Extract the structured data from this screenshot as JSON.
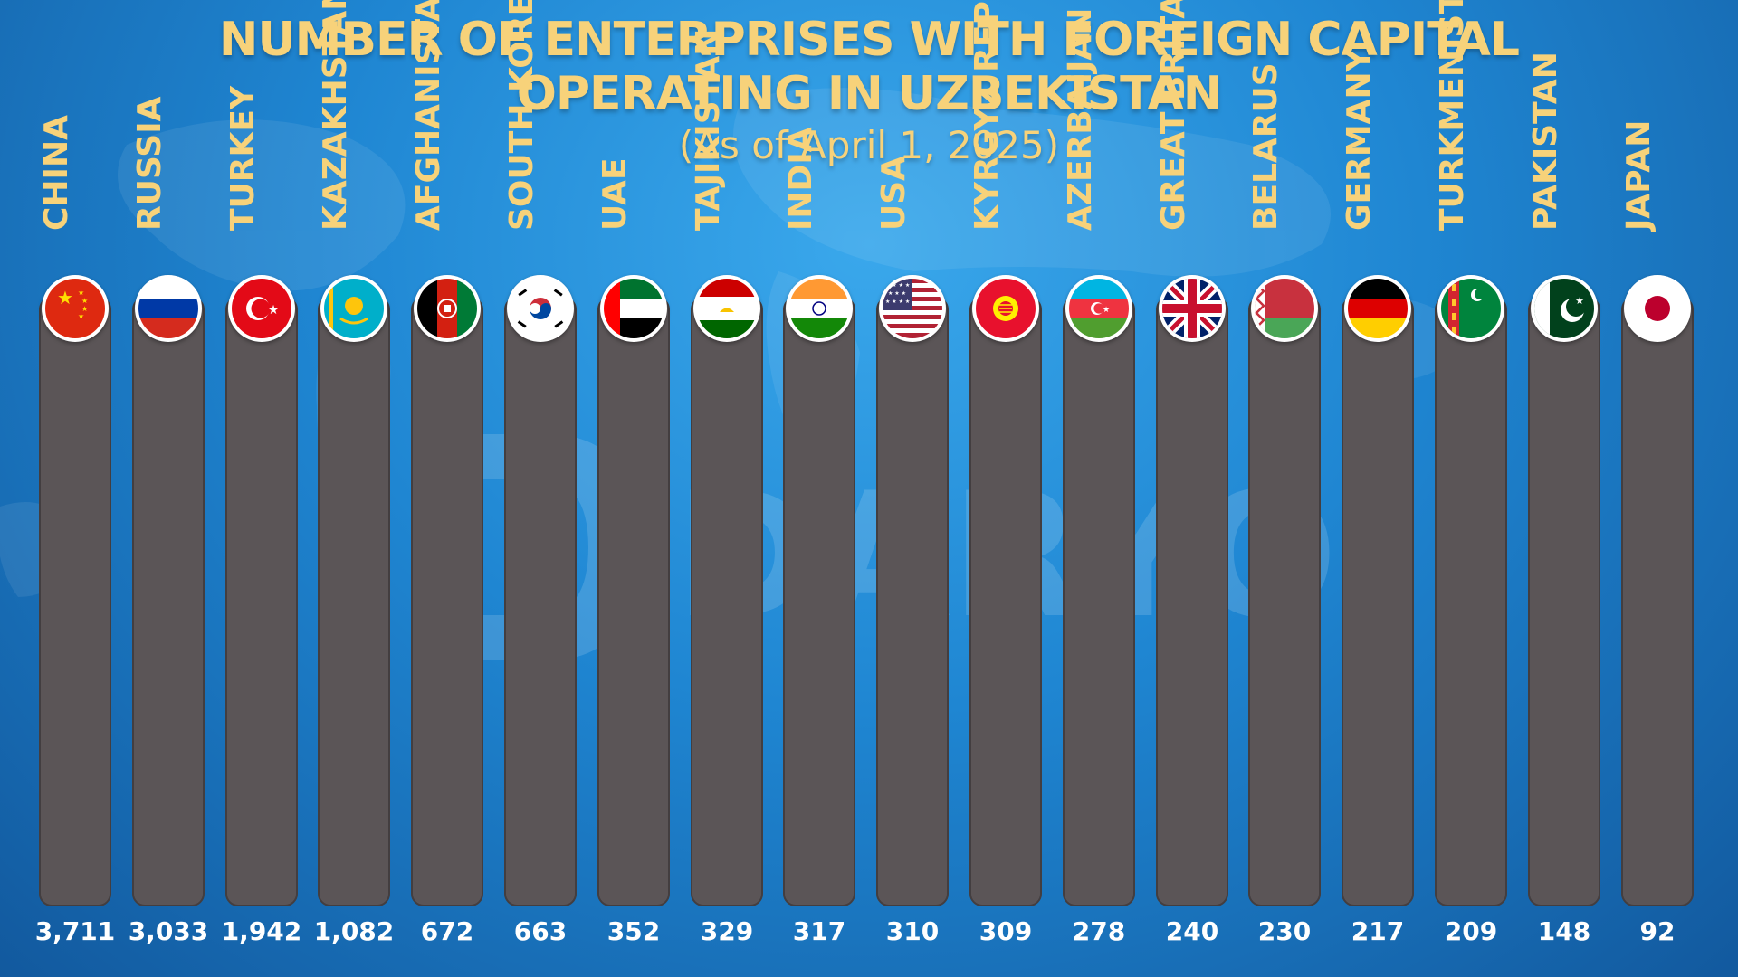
{
  "chart_data": {
    "type": "bar",
    "title": "NUMBER OF ENTERPRISES WITH FOREIGN CAPITAL OPERATING IN UZBEKISTAN",
    "title_lines": [
      "NUMBER OF ENTERPRISES WITH FOREIGN CAPITAL",
      "OPERATING IN UZBEKISTAN"
    ],
    "subtitle": "(As of April 1, 2025)",
    "xlabel": "",
    "ylabel": "",
    "categories": [
      "CHINA",
      "RUSSIA",
      "TURKEY",
      "KAZAKHSTAN",
      "AFGHANISTAN",
      "SOUTH KOREA",
      "UAE",
      "TAJIKISTAN",
      "INDIA",
      "USA",
      "KYRGYZ REPUBLIC",
      "AZERBAIJAN",
      "GREAT BRITAIN",
      "BELARUS",
      "GERMANY",
      "TURKMENISTAN",
      "PAKISTAN",
      "JAPAN"
    ],
    "values": [
      3711,
      3033,
      1942,
      1082,
      672,
      663,
      352,
      329,
      317,
      310,
      309,
      278,
      240,
      230,
      217,
      209,
      148,
      92
    ],
    "value_labels": [
      "3,711",
      "3,033",
      "1,942",
      "1,082",
      "672",
      "663",
      "352",
      "329",
      "317",
      "310",
      "309",
      "278",
      "240",
      "230",
      "217",
      "209",
      "148",
      "92"
    ],
    "flag_icons": [
      "china-flag-icon",
      "russia-flag-icon",
      "turkey-flag-icon",
      "kazakhstan-flag-icon",
      "afghanistan-flag-icon",
      "south-korea-flag-icon",
      "uae-flag-icon",
      "tajikistan-flag-icon",
      "india-flag-icon",
      "usa-flag-icon",
      "kyrgyzstan-flag-icon",
      "azerbaijan-flag-icon",
      "great-britain-flag-icon",
      "belarus-flag-icon",
      "germany-flag-icon",
      "turkmenistan-flag-icon",
      "pakistan-flag-icon",
      "japan-flag-icon"
    ],
    "grid": false,
    "legend": "none"
  },
  "watermark": {
    "text": "DARYO"
  },
  "colors": {
    "title": "#f7d27a",
    "bar": "#5b5557",
    "value_text": "#ffffff",
    "background": "#1f86d2"
  }
}
